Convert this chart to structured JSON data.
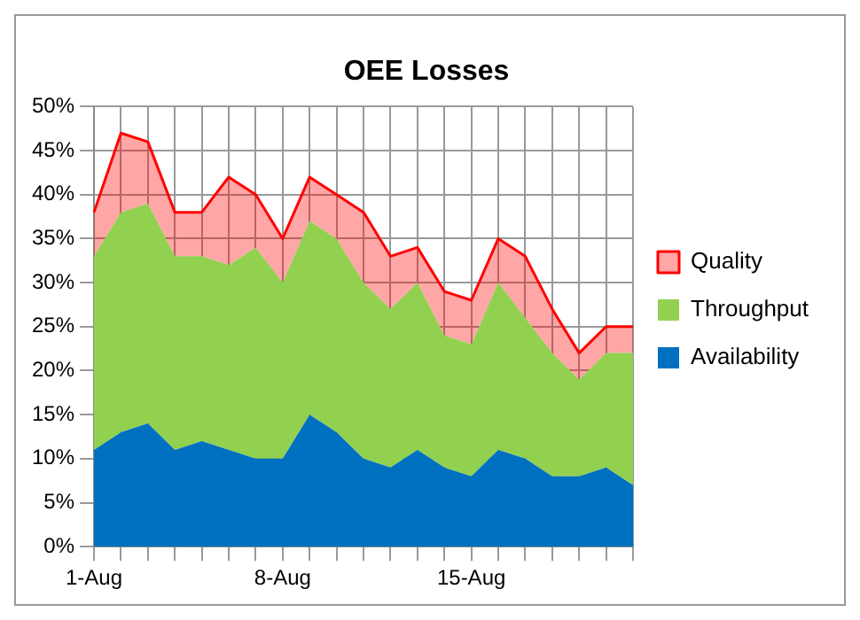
{
  "chart_data": {
    "type": "area",
    "title": "OEE Losses",
    "stacked": true,
    "categories": [
      "1-Aug",
      null,
      null,
      null,
      null,
      null,
      null,
      "8-Aug",
      null,
      null,
      null,
      null,
      null,
      null,
      "15-Aug",
      null,
      null,
      null,
      null,
      null,
      null
    ],
    "series": [
      {
        "name": "Availability",
        "color": "#0070c0",
        "values": [
          11,
          13,
          14,
          11,
          12,
          11,
          10,
          10,
          15,
          13,
          10,
          9,
          11,
          9,
          8,
          11,
          10,
          8,
          8,
          9,
          7
        ]
      },
      {
        "name": "Throughput",
        "color": "#92d050",
        "values": [
          22,
          25,
          25,
          22,
          21,
          21,
          24,
          20,
          22,
          22,
          20,
          18,
          19,
          15,
          15,
          19,
          16,
          14,
          11,
          13,
          15
        ]
      },
      {
        "name": "Quality",
        "color": "#ff0000",
        "values": [
          5,
          9,
          7,
          5,
          5,
          10,
          6,
          5,
          5,
          5,
          8,
          6,
          4,
          5,
          5,
          5,
          7,
          5,
          3,
          3,
          3
        ]
      }
    ],
    "ylim": [
      0,
      50
    ],
    "yticks": [
      {
        "value": 0,
        "label": "0%"
      },
      {
        "value": 5,
        "label": "5%"
      },
      {
        "value": 10,
        "label": "10%"
      },
      {
        "value": 15,
        "label": "15%"
      },
      {
        "value": 20,
        "label": "20%"
      },
      {
        "value": 25,
        "label": "25%"
      },
      {
        "value": 30,
        "label": "30%"
      },
      {
        "value": 35,
        "label": "35%"
      },
      {
        "value": 40,
        "label": "40%"
      },
      {
        "value": 45,
        "label": "45%"
      },
      {
        "value": 50,
        "label": "50%"
      }
    ],
    "grid": true,
    "legend": "right"
  }
}
